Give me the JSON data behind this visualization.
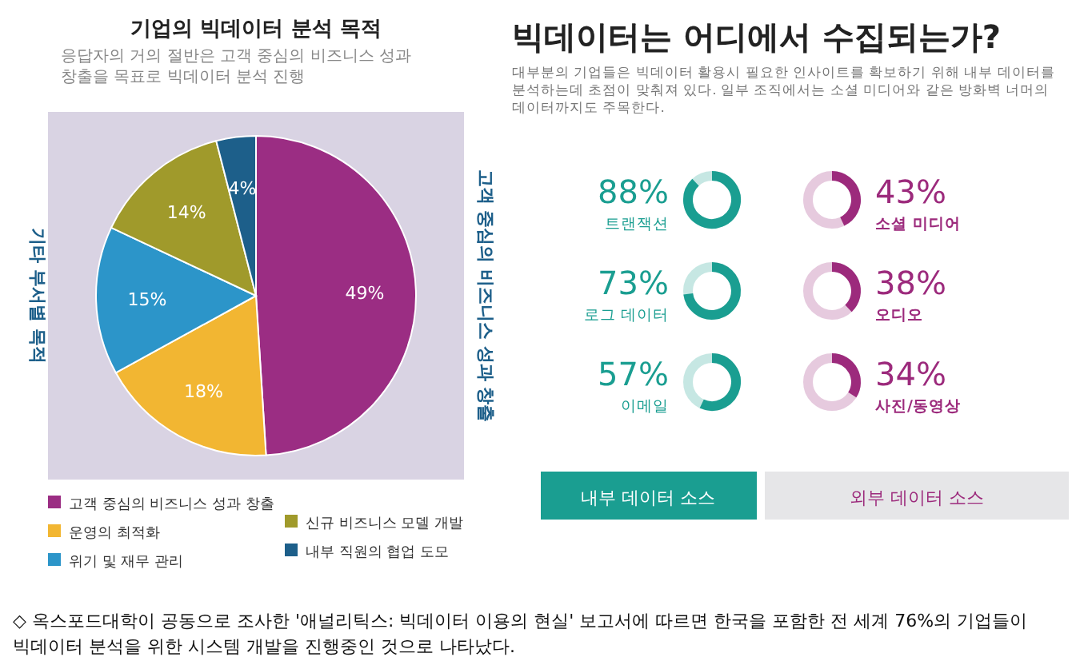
{
  "chart_data": [
    {
      "type": "pie",
      "title": "기업의 빅데이터 분석 목적",
      "subtitle": "응답자의 거의 절반은 고객 중심의 비즈니스 성과 창출을 목표로 빅데이터 분석 진행",
      "categories": [
        "고객 중심의 비즈니스 성과 창출",
        "운영의 최적화",
        "위기 및 재무 관리",
        "신규 비즈니스 모델 개발",
        "내부 직원의 협업 도모"
      ],
      "values": [
        49,
        18,
        15,
        14,
        4
      ],
      "colors": [
        "#9b2d83",
        "#f2b632",
        "#2c95c9",
        "#a09a2b",
        "#1d5f8a"
      ],
      "value_labels": [
        "49%",
        "18%",
        "15%",
        "14%",
        "4%"
      ],
      "legend": "bottom",
      "annotations": [
        "기타 부서별 목적",
        "고객 중심의 비즈니스 성과 창출",
        "◇ 옥스포드대학이 공동으로 조사한 '애널리틱스: 빅데이터 이용의 현실' 보고서에 따르면 한국을 포함한 전 세계 76%의 기업들이 빅데이터 분석을 위한 시스템 개발을 진행중인 것으로 나타났다."
      ]
    },
    {
      "type": "other",
      "title": "빅데이터는 어디에서 수집되는가?",
      "subtitle": "대부분의 기업들은 빅데이터 활용시 필요한 인사이트를 확보하기 위해 내부 데이터를 분석하는데 초점이 맞춰져 있다. 일부 조직에서는 소셜 미디어와 같은 방화벽 너머의 데이터까지도 주목한다.",
      "categories": [
        "트랜잭션",
        "로그 데이터",
        "이메일",
        "소셜 미디어",
        "오디오",
        "사진/동영상"
      ],
      "values": [
        88,
        73,
        57,
        43,
        38,
        34
      ],
      "colors": [
        "#1a9e91",
        "#1a9e91",
        "#1a9e91",
        "#9c2a7c",
        "#9c2a7c",
        "#9c2a7c"
      ],
      "value_labels": [
        "88%",
        "73%",
        "57%",
        "43%",
        "38%",
        "34%"
      ],
      "annotations": [
        "내부 데이터 소스",
        "외부 데이터 소스"
      ]
    }
  ]
}
